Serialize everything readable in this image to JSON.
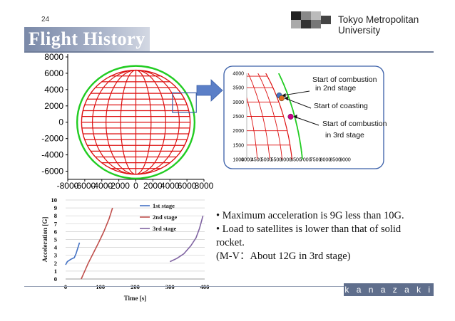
{
  "slide": {
    "number": "24",
    "title": "Flight History",
    "university": "Tokyo Metropolitan University",
    "footer": "k a n a z a k i - l a b",
    "bullets": [
      "• Maximum acceleration is 9G less than 10G.",
      "• Load to satellites is lower than that of solid",
      "rocket.",
      " (M-V：About 12G in 3rd stage)"
    ]
  },
  "colors": {
    "trajectory": "#22cc22",
    "grid": "#dd1111",
    "stage1": "#4472c4",
    "stage2": "#c0504d",
    "stage3": "#8064a2",
    "title_bar": "#7a89a8"
  },
  "chart_data": [
    {
      "type": "line",
      "name": "globe-trajectory",
      "xlim": [
        -8000,
        8000
      ],
      "ylim": [
        -7000,
        8000
      ],
      "xticks": [
        -8000,
        -6000,
        -4000,
        -2000,
        0,
        2000,
        4000,
        6000,
        8000
      ],
      "xtick_labels": [
        "-8000",
        "-6000",
        "-4000",
        "-2000",
        "0",
        "2000",
        "4000",
        "6000",
        "8000"
      ],
      "yticks": [
        8000,
        6000,
        4000,
        2000,
        0,
        -2000,
        -4000,
        -6000
      ],
      "ytick_labels": [
        "8000",
        "6000",
        "4000",
        "2000",
        "0",
        "-2000",
        "-4000",
        "-6000"
      ],
      "earth_radius": 6378,
      "trajectory_radius": 6900
    },
    {
      "type": "line",
      "name": "zoom-inset",
      "xlim": [
        4000,
        9000
      ],
      "ylim": [
        1000,
        4000
      ],
      "xticks": [
        4000,
        4500,
        5000,
        5500,
        6000,
        6500,
        7000,
        7500,
        8000,
        8500,
        9000
      ],
      "xtick_labels": [
        "4000",
        "4500",
        "5000",
        "5500",
        "6000",
        "6500",
        "7000",
        "7500",
        "8000",
        "8500",
        "9000"
      ],
      "yticks": [
        1000,
        1500,
        2000,
        2500,
        3000,
        3500,
        4000
      ],
      "ytick_labels": [
        "1000",
        "1500",
        "2000",
        "2500",
        "3000",
        "3500",
        "4000"
      ],
      "points": [
        {
          "label": "Start of combustion in 2nd stage",
          "line1": "Start of combustion",
          "line2": "in 2nd stage",
          "x": 5650,
          "y": 3230,
          "color": "#4472c4"
        },
        {
          "label": "Start of coasting",
          "line1": "Start of coasting",
          "line2": "",
          "x": 5770,
          "y": 3130,
          "color": "#e07020"
        },
        {
          "label": "Start of combustion in 3rd stage",
          "line1": "Start of combustion",
          "line2": "in 3rd stage",
          "x": 6230,
          "y": 2490,
          "color": "#cc0088"
        }
      ]
    },
    {
      "type": "line",
      "name": "acceleration",
      "xlabel": "Time [s]",
      "ylabel": "Acceleration [G]",
      "xlim": [
        0,
        400
      ],
      "ylim": [
        0,
        10
      ],
      "xticks": [
        0,
        100,
        200,
        300,
        400
      ],
      "xtick_labels": [
        "0",
        "100",
        "200",
        "300",
        "400"
      ],
      "yticks": [
        0,
        1,
        2,
        3,
        4,
        5,
        6,
        7,
        8,
        9,
        10
      ],
      "ytick_labels": [
        "0",
        "1",
        "2",
        "3",
        "4",
        "5",
        "6",
        "7",
        "8",
        "9",
        "10"
      ],
      "grid": true,
      "legend_position": "top-center",
      "series": [
        {
          "name": "1st stage",
          "color": "#4472c4",
          "x": [
            0,
            5,
            15,
            25,
            30,
            40
          ],
          "y": [
            1.8,
            2.2,
            2.5,
            2.7,
            3.2,
            4.6
          ]
        },
        {
          "name": "2nd stage",
          "color": "#c0504d",
          "x": [
            45,
            55,
            65,
            80,
            95,
            110,
            125,
            135
          ],
          "y": [
            0,
            1.0,
            2.0,
            3.3,
            4.6,
            6.0,
            7.6,
            9.0
          ]
        },
        {
          "name": "3rd stage",
          "color": "#8064a2",
          "x": [
            300,
            320,
            340,
            360,
            375,
            385,
            395
          ],
          "y": [
            2.2,
            2.6,
            3.2,
            4.2,
            5.2,
            6.4,
            8.0
          ]
        }
      ]
    }
  ]
}
